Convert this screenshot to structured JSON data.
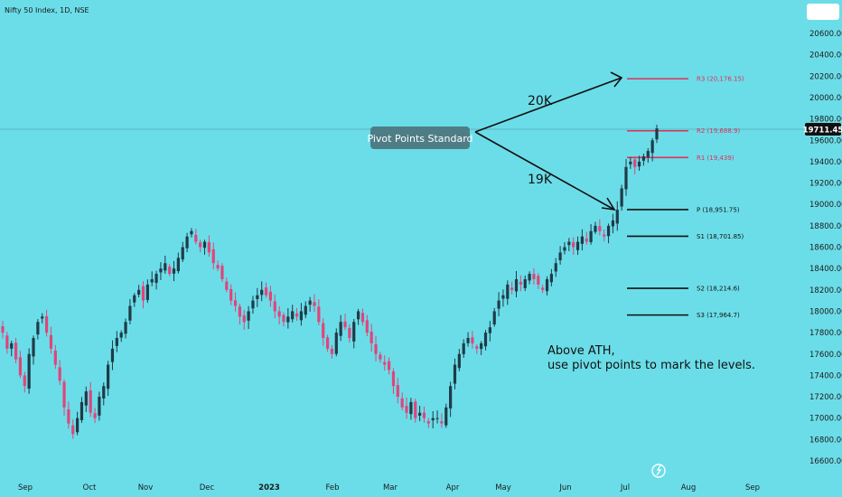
{
  "header": {
    "title": "Nifty 50 Index, 1D, NSE"
  },
  "colors": {
    "background": "#6bdde8",
    "up": "#1e3b47",
    "down": "#e0457b",
    "red_level": "#e0305a",
    "black_level": "#111111",
    "box": "#4f7d86"
  },
  "chart_data": {
    "type": "candlestick",
    "title": "Nifty 50 Index, 1D, NSE",
    "y_axis": {
      "min": 16500,
      "max": 20800,
      "ticks": [
        16600,
        16800,
        17000,
        17200,
        17400,
        17600,
        17800,
        18000,
        18200,
        18400,
        18600,
        18800,
        19000,
        19200,
        19400,
        19600,
        19800,
        20000,
        20200,
        20400,
        20600
      ],
      "tick_labels": [
        "16600.00",
        "16800.00",
        "17000.00",
        "17200.00",
        "17400.00",
        "17600.00",
        "17800.00",
        "18000.00",
        "18200.00",
        "18400.00",
        "18600.00",
        "18800.00",
        "19000.00",
        "19200.00",
        "19400.00",
        "19600.00",
        "19800.00",
        "20000.00",
        "20200.00",
        "20400.00",
        "20600.00"
      ]
    },
    "x_axis": {
      "labels": [
        "Sep",
        "Oct",
        "Nov",
        "Dec",
        "2023",
        "Feb",
        "Mar",
        "Apr",
        "May",
        "Jun",
        "Jul",
        "Aug",
        "Sep"
      ]
    },
    "last_price": {
      "value": 19711.45,
      "label": "19711.45"
    },
    "pivot_levels": [
      {
        "name": "R3",
        "value": 20176.15,
        "label": "R3 (20,176.15)",
        "color": "red"
      },
      {
        "name": "R2",
        "value": 19688.9,
        "label": "R2 (19,688.9)",
        "color": "red"
      },
      {
        "name": "R1",
        "value": 19439,
        "label": "R1 (19,439)",
        "color": "red"
      },
      {
        "name": "P",
        "value": 18951.75,
        "label": "P (18,951.75)",
        "color": "black"
      },
      {
        "name": "S1",
        "value": 18701.85,
        "label": "S1 (18,701.85)",
        "color": "black"
      },
      {
        "name": "S2",
        "value": 18214.6,
        "label": "S2 (18,214.6)",
        "color": "black"
      },
      {
        "name": "S3",
        "value": 17964.7,
        "label": "S3 (17,964.7)",
        "color": "black"
      }
    ],
    "annotations": {
      "box": "Pivot Points Standard",
      "upper_target": "20K",
      "lower_target": "19K",
      "note_line1": "Above ATH,",
      "note_line2": "use pivot points to mark the levels."
    },
    "close_path": [
      17800,
      17650,
      17700,
      17550,
      17400,
      17300,
      17600,
      17750,
      17900,
      17950,
      17800,
      17650,
      17500,
      17350,
      17100,
      16950,
      16850,
      17000,
      17150,
      17250,
      17050,
      17000,
      17200,
      17300,
      17500,
      17650,
      17750,
      17800,
      17900,
      18050,
      18150,
      18200,
      18100,
      18250,
      18300,
      18350,
      18400,
      18450,
      18350,
      18400,
      18500,
      18600,
      18700,
      18750,
      18650,
      18600,
      18650,
      18550,
      18450,
      18400,
      18300,
      18200,
      18100,
      18050,
      17950,
      17900,
      18000,
      18100,
      18150,
      18200,
      18150,
      18100,
      18000,
      17950,
      17900,
      17950,
      18000,
      17950,
      18000,
      18050,
      18100,
      18050,
      17900,
      17750,
      17650,
      17600,
      17800,
      17900,
      17850,
      17750,
      17900,
      18000,
      17900,
      17800,
      17700,
      17600,
      17550,
      17500,
      17450,
      17300,
      17200,
      17100,
      17050,
      17150,
      17000,
      17050,
      17000,
      16950,
      17000,
      17000,
      16950,
      17100,
      17300,
      17500,
      17600,
      17700,
      17750,
      17700,
      17650,
      17700,
      17800,
      17850,
      18000,
      18100,
      18150,
      18250,
      18200,
      18300,
      18250,
      18300,
      18350,
      18300,
      18250,
      18200,
      18300,
      18350,
      18450,
      18550,
      18600,
      18650,
      18600,
      18650,
      18700,
      18650,
      18750,
      18800,
      18750,
      18700,
      18800,
      18850,
      18950,
      19150,
      19350,
      19400,
      19350,
      19400,
      19450,
      19500,
      19600,
      19711.45
    ]
  }
}
